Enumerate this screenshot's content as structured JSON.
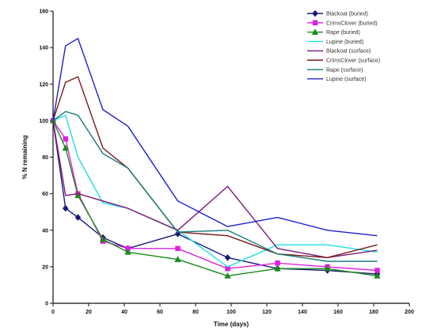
{
  "chart_data": {
    "type": "line",
    "title": "",
    "xlabel": "Time (days)",
    "ylabel": "% N remaining",
    "xlim": [
      0,
      200
    ],
    "ylim": [
      0,
      160
    ],
    "xticks": [
      0,
      20,
      40,
      60,
      80,
      100,
      120,
      140,
      160,
      180,
      200
    ],
    "yticks": [
      0,
      20,
      40,
      60,
      80,
      100,
      120,
      140,
      160
    ],
    "grid": false,
    "legend_position": "top-right",
    "series": [
      {
        "name": "Blackoat (buried)",
        "color": "#1a1a7a",
        "marker": "diamond",
        "x": [
          0,
          7,
          14,
          28,
          42,
          70,
          98,
          126,
          154,
          182
        ],
        "y": [
          100,
          52,
          47,
          36,
          30,
          38,
          25,
          19,
          18,
          16
        ]
      },
      {
        "name": "CrimsClover (buried)",
        "color": "#e020e0",
        "marker": "square",
        "x": [
          0,
          7,
          14,
          28,
          42,
          70,
          98,
          126,
          154,
          182
        ],
        "y": [
          100,
          90,
          60,
          34,
          30,
          30,
          19,
          22,
          20,
          18
        ]
      },
      {
        "name": "Rape (buried)",
        "color": "#1a8a1a",
        "marker": "triangle",
        "x": [
          0,
          7,
          14,
          28,
          42,
          70,
          98,
          126,
          154,
          182
        ],
        "y": [
          100,
          85,
          59,
          35,
          28,
          24,
          15,
          19,
          19,
          15
        ]
      },
      {
        "name": "Lupine (buried)",
        "color": "#20e0e0",
        "marker": "none",
        "x": [
          0,
          7,
          14,
          28,
          42,
          70,
          98,
          126,
          154,
          182
        ],
        "y": [
          100,
          103,
          80,
          55,
          52,
          40,
          20,
          32,
          32,
          28
        ]
      },
      {
        "name": "Blackoat (surface)",
        "color": "#7a1a7a",
        "marker": "none",
        "x": [
          0,
          7,
          14,
          28,
          42,
          70,
          98,
          126,
          154,
          182
        ],
        "y": [
          100,
          59,
          60,
          56,
          52,
          40,
          64,
          30,
          25,
          29
        ]
      },
      {
        "name": "CrimsClover (surface)",
        "color": "#7a1a1a",
        "marker": "none",
        "x": [
          0,
          7,
          14,
          28,
          42,
          70,
          98,
          126,
          154,
          182
        ],
        "y": [
          100,
          121,
          124,
          85,
          74,
          39,
          37,
          27,
          25,
          32
        ]
      },
      {
        "name": "Rape (surface)",
        "color": "#1a7a7a",
        "marker": "none",
        "x": [
          0,
          7,
          14,
          28,
          42,
          70,
          98,
          126,
          154,
          182
        ],
        "y": [
          100,
          105,
          103,
          82,
          74,
          39,
          40,
          27,
          23,
          23
        ]
      },
      {
        "name": "Lupine (surface)",
        "color": "#2020cc",
        "marker": "none",
        "x": [
          0,
          7,
          14,
          28,
          42,
          70,
          98,
          126,
          154,
          182
        ],
        "y": [
          100,
          141,
          145,
          106,
          97,
          56,
          42,
          47,
          40,
          37
        ]
      }
    ]
  }
}
